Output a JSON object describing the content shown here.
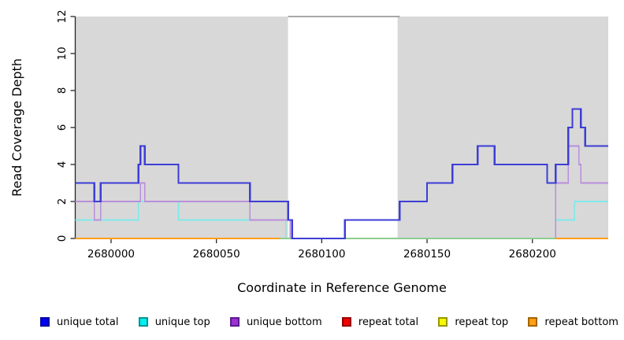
{
  "chart_data": {
    "type": "line",
    "subtype": "step-coverage",
    "title": "",
    "xlabel": "Coordinate in Reference Genome",
    "ylabel": "Read Coverage Depth",
    "xlim": [
      2679983,
      2680236
    ],
    "ylim": [
      0,
      12
    ],
    "x_ticks": [
      2680000,
      2680050,
      2680100,
      2680150,
      2680200
    ],
    "y_ticks": [
      0,
      2,
      4,
      6,
      8,
      10,
      12
    ],
    "grid": "off",
    "background_shading": {
      "color": "#d8d8d8",
      "regions": [
        [
          2679983,
          2680084
        ],
        [
          2680136,
          2680236
        ]
      ],
      "gap_top_line": {
        "y": 12,
        "x0": 2680084,
        "x1": 2680137,
        "color": "#8c8c8c"
      }
    },
    "axis_color": "#262626",
    "series": [
      {
        "name": "repeat total",
        "color": "#e00000",
        "width": 1.5,
        "segments": [
          [
            2679983,
            2680236,
            0
          ]
        ]
      },
      {
        "name": "repeat top",
        "color": "#f5f500",
        "width": 1.5,
        "segments": [
          [
            2679983,
            2680236,
            0
          ]
        ]
      },
      {
        "name": "unique top",
        "color": "#80e9e9",
        "width": 1.6,
        "segments": [
          [
            2679983,
            2680013,
            1
          ],
          [
            2680013,
            2680032,
            2
          ],
          [
            2680032,
            2680083,
            1
          ],
          [
            2680083,
            2680211,
            0
          ],
          [
            2680211,
            2680220,
            1
          ],
          [
            2680220,
            2680236,
            2
          ]
        ]
      },
      {
        "name": "unique bottom",
        "color": "#b98edb",
        "width": 1.6,
        "segments": [
          [
            2679983,
            2679992,
            2
          ],
          [
            2679992,
            2679995,
            1
          ],
          [
            2679995,
            2680014,
            2
          ],
          [
            2680014,
            2680016,
            3
          ],
          [
            2680016,
            2680066,
            2
          ],
          [
            2680066,
            2680085,
            1
          ],
          [
            2680085,
            2680211,
            0
          ],
          [
            2680211,
            2680217,
            3
          ],
          [
            2680217,
            2680222,
            5
          ],
          [
            2680222,
            2680223,
            4
          ],
          [
            2680223,
            2680236,
            3
          ]
        ]
      },
      {
        "name": "zero-line overlap",
        "color": "#8fcc8f",
        "width": 1.6,
        "segments": [
          [
            2680080,
            2680211,
            0
          ]
        ]
      },
      {
        "name": "repeat bottom",
        "color": "#ff9d1a",
        "width": 2.4,
        "segments": [
          [
            2679983,
            2680080,
            0
          ],
          [
            2680211,
            2680236,
            0
          ]
        ]
      },
      {
        "name": "unique total",
        "color": "#3d3dd6",
        "width": 2.4,
        "segments": [
          [
            2679983,
            2679992,
            3
          ],
          [
            2679992,
            2679995,
            2
          ],
          [
            2679995,
            2680013,
            3
          ],
          [
            2680013,
            2680014,
            4
          ],
          [
            2680014,
            2680016,
            5
          ],
          [
            2680016,
            2680032,
            4
          ],
          [
            2680032,
            2680066,
            3
          ],
          [
            2680066,
            2680084,
            2
          ],
          [
            2680084,
            2680086,
            1
          ],
          [
            2680086,
            2680111,
            0
          ],
          [
            2680111,
            2680137,
            1
          ],
          [
            2680137,
            2680150,
            2
          ],
          [
            2680150,
            2680162,
            3
          ],
          [
            2680162,
            2680174,
            4
          ],
          [
            2680174,
            2680182,
            5
          ],
          [
            2680182,
            2680207,
            4
          ],
          [
            2680207,
            2680211,
            3
          ],
          [
            2680211,
            2680217,
            4
          ],
          [
            2680217,
            2680219,
            6
          ],
          [
            2680219,
            2680223,
            7
          ],
          [
            2680223,
            2680225,
            6
          ],
          [
            2680225,
            2680236,
            5
          ]
        ]
      }
    ],
    "legend": [
      {
        "label": "unique total",
        "fill": "#0000f0",
        "border": "#0000a0"
      },
      {
        "label": "unique top",
        "fill": "#00f0f0",
        "border": "#009494"
      },
      {
        "label": "unique bottom",
        "fill": "#9932cc",
        "border": "#5c1792"
      },
      {
        "label": "repeat total",
        "fill": "#f00000",
        "border": "#940000"
      },
      {
        "label": "repeat top",
        "fill": "#f8f800",
        "border": "#979700"
      },
      {
        "label": "repeat bottom",
        "fill": "#ffa012",
        "border": "#a36400"
      }
    ],
    "legend_position": "bottom"
  }
}
